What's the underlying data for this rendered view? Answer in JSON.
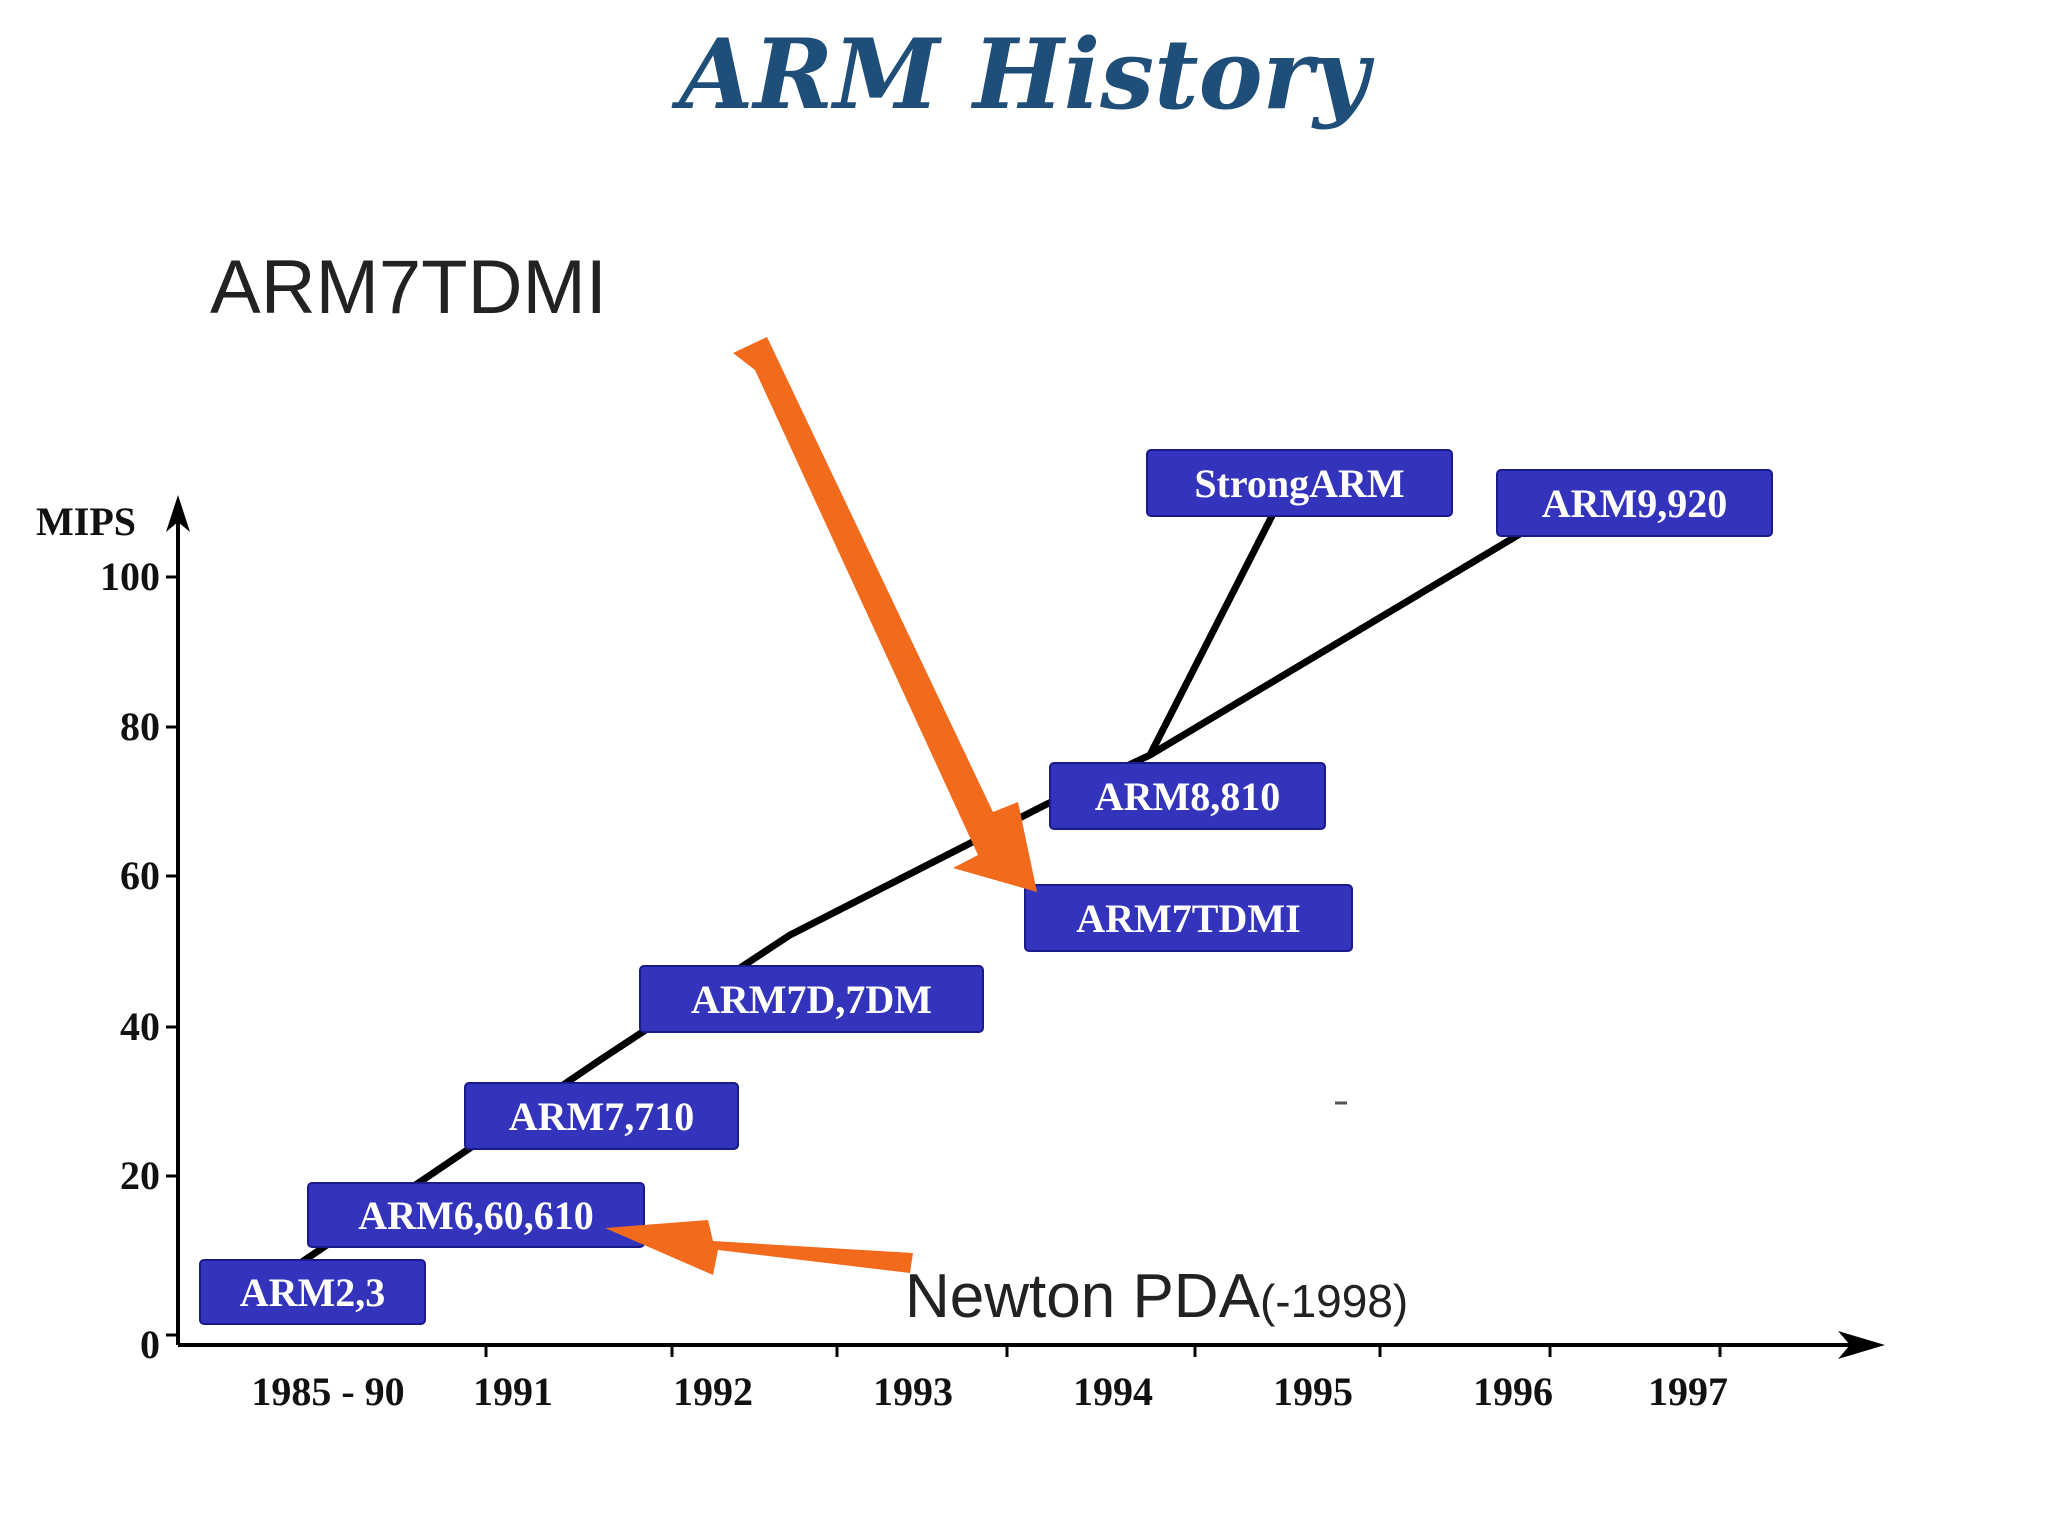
{
  "slide": {
    "title": "ARM History",
    "callout_top": "ARM7TDMI",
    "callout_bottom_main": "Newton PDA",
    "callout_bottom_suffix": "(-1998)"
  },
  "colors": {
    "title": "#1f4e79",
    "chip": "#3333bb",
    "arrow": "#f26b1d",
    "line": "#000000"
  },
  "chart_data": {
    "type": "line",
    "title": "",
    "ylabel": "MIPS",
    "xlabel": "",
    "ylim": [
      0,
      100
    ],
    "y_ticks": [
      "0",
      "20",
      "40",
      "60",
      "80",
      "100"
    ],
    "x_ticks": [
      "1985 - 90",
      "1991",
      "1992",
      "1993",
      "1994",
      "1995",
      "1996",
      "1997"
    ],
    "series": [
      {
        "points": [
          {
            "label": "ARM2,3",
            "x": "1985 - 90",
            "y": 5
          },
          {
            "label": "ARM6,60,610",
            "x": "1991",
            "y": 17
          },
          {
            "label": "ARM7,710",
            "x": "1991",
            "y": 30
          },
          {
            "label": "ARM7D,7DM",
            "x": "1992",
            "y": 42
          },
          {
            "label": "ARM7TDMI",
            "x": "1993",
            "y": 62
          },
          {
            "label": "ARM8,810",
            "x": "1994",
            "y": 76
          },
          {
            "label": "StrongARM",
            "x": "1995",
            "y": 112
          },
          {
            "label": "ARM9,920",
            "x": "1996",
            "y": 108
          }
        ]
      }
    ]
  }
}
